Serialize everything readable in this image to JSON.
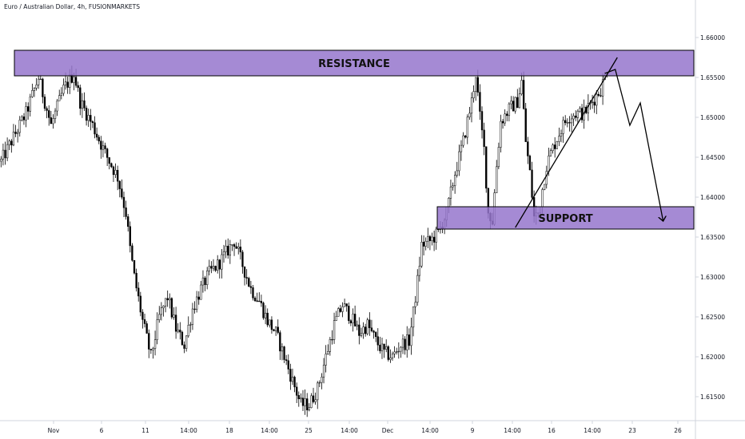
{
  "header": {
    "title": "Euro / Australian Dollar, 4h, FUSIONMARKETS"
  },
  "colors": {
    "zone_fill": "#9575cd",
    "zone_border": "#000000",
    "candle_up": "#ffffff",
    "candle_down": "#000000",
    "candle_outline": "#000000",
    "axis_text": "#131722",
    "axis_border": "#d1d4dc"
  },
  "chart_data": {
    "type": "candlestick",
    "symbol": "Euro / Australian Dollar",
    "interval": "4h",
    "source": "FUSIONMARKETS",
    "ylim": [
      1.6125,
      1.6615
    ],
    "y_ticks": [
      "1.66000",
      "1.65500",
      "1.65000",
      "1.64500",
      "1.64000",
      "1.63500",
      "1.63000",
      "1.62500",
      "1.62000",
      "1.61500"
    ],
    "x_ticks": [
      "Nov",
      "6",
      "11",
      "14:00",
      "18",
      "14:00",
      "25",
      "14:00",
      "Dec",
      "14:00",
      "9",
      "14:00",
      "16",
      "14:00",
      "23",
      "26"
    ],
    "close_path": [
      [
        0,
        1.6445
      ],
      [
        6,
        1.6475
      ],
      [
        12,
        1.6505
      ],
      [
        18,
        1.655
      ],
      [
        24,
        1.649
      ],
      [
        30,
        1.6535
      ],
      [
        35,
        1.6555
      ],
      [
        38,
        1.652
      ],
      [
        44,
        1.649
      ],
      [
        50,
        1.6455
      ],
      [
        56,
        1.6425
      ],
      [
        60,
        1.638
      ],
      [
        62,
        1.6335
      ],
      [
        64,
        1.63
      ],
      [
        68,
        1.6245
      ],
      [
        72,
        1.62
      ],
      [
        76,
        1.625
      ],
      [
        80,
        1.6275
      ],
      [
        84,
        1.6235
      ],
      [
        88,
        1.6215
      ],
      [
        92,
        1.626
      ],
      [
        96,
        1.6285
      ],
      [
        100,
        1.6305
      ],
      [
        104,
        1.6315
      ],
      [
        108,
        1.633
      ],
      [
        112,
        1.6345
      ],
      [
        116,
        1.6315
      ],
      [
        120,
        1.6285
      ],
      [
        124,
        1.627
      ],
      [
        128,
        1.6245
      ],
      [
        132,
        1.623
      ],
      [
        136,
        1.62
      ],
      [
        140,
        1.617
      ],
      [
        144,
        1.614
      ],
      [
        148,
        1.614
      ],
      [
        152,
        1.616
      ],
      [
        156,
        1.62
      ],
      [
        160,
        1.624
      ],
      [
        164,
        1.6265
      ],
      [
        168,
        1.625
      ],
      [
        172,
        1.623
      ],
      [
        176,
        1.624
      ],
      [
        180,
        1.622
      ],
      [
        184,
        1.6205
      ],
      [
        188,
        1.62
      ],
      [
        192,
        1.6215
      ],
      [
        196,
        1.622
      ],
      [
        198,
        1.6255
      ],
      [
        200,
        1.6295
      ],
      [
        202,
        1.634
      ],
      [
        206,
        1.6345
      ],
      [
        210,
        1.6355
      ],
      [
        214,
        1.638
      ],
      [
        218,
        1.643
      ],
      [
        222,
        1.647
      ],
      [
        226,
        1.652
      ],
      [
        228,
        1.6555
      ],
      [
        230,
        1.65
      ],
      [
        232,
        1.646
      ],
      [
        234,
        1.638
      ],
      [
        236,
        1.637
      ],
      [
        238,
        1.644
      ],
      [
        240,
        1.6495
      ],
      [
        244,
        1.651
      ],
      [
        248,
        1.652
      ],
      [
        250,
        1.6545
      ],
      [
        252,
        1.647
      ],
      [
        254,
        1.643
      ],
      [
        256,
        1.6375
      ],
      [
        258,
        1.638
      ],
      [
        260,
        1.641
      ],
      [
        262,
        1.644
      ],
      [
        264,
        1.6455
      ],
      [
        268,
        1.648
      ],
      [
        272,
        1.65
      ],
      [
        276,
        1.6505
      ],
      [
        280,
        1.6505
      ],
      [
        284,
        1.652
      ],
      [
        288,
        1.6535
      ],
      [
        290,
        1.655
      ],
      [
        291,
        1.656
      ]
    ],
    "zones": [
      {
        "label": "RESISTANCE",
        "y_top": 1.6584,
        "y_bottom": 1.6552,
        "x_start": 0,
        "x_end": 334
      },
      {
        "label": "SUPPORT",
        "y_top": 1.6388,
        "y_bottom": 1.636,
        "x_start": 210,
        "x_end": 334
      }
    ],
    "annotations": [
      {
        "type": "trendline",
        "points": [
          [
            247,
            1.6362
          ],
          [
            296,
            1.6575
          ]
        ]
      },
      {
        "type": "projection_path",
        "arrow": true,
        "points": [
          [
            290,
            1.6555
          ],
          [
            295,
            1.656
          ],
          [
            302,
            1.649
          ],
          [
            307,
            1.6518
          ],
          [
            318,
            1.637
          ]
        ]
      }
    ]
  }
}
